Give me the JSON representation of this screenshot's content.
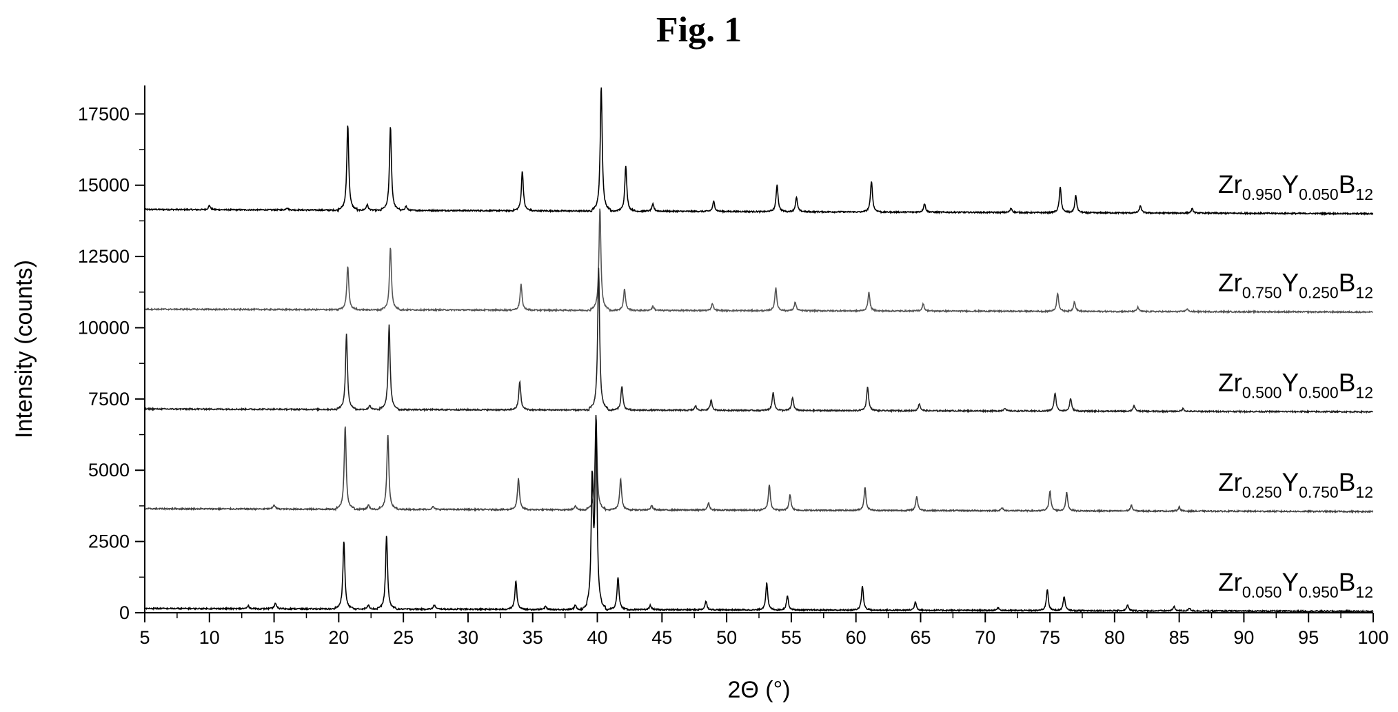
{
  "figure": {
    "title": "Fig. 1"
  },
  "chart_data": {
    "type": "line",
    "xlabel": "2Θ (°)",
    "ylabel": "Intensity (counts)",
    "xlim": [
      5,
      100
    ],
    "ylim": [
      0,
      18500
    ],
    "xticks": [
      5,
      10,
      15,
      20,
      25,
      30,
      35,
      40,
      45,
      50,
      55,
      60,
      65,
      70,
      75,
      80,
      85,
      90,
      95,
      100
    ],
    "yticks": [
      0,
      2500,
      5000,
      7500,
      10000,
      12500,
      15000,
      17500
    ],
    "grid": false,
    "legend": "inline labels at right of each trace",
    "series": [
      {
        "label_parts": [
          "Zr",
          "0.950",
          "Y",
          "0.050",
          "B",
          "12"
        ],
        "color": "#000000",
        "baseline": [
          [
            5,
            14150
          ],
          [
            100,
            14000
          ]
        ],
        "peaks": [
          [
            10.0,
            150
          ],
          [
            16.0,
            80
          ],
          [
            20.7,
            3000
          ],
          [
            22.2,
            200
          ],
          [
            24.0,
            2950
          ],
          [
            25.2,
            150
          ],
          [
            34.2,
            1400
          ],
          [
            40.3,
            4400
          ],
          [
            42.2,
            1600
          ],
          [
            44.3,
            250
          ],
          [
            49.0,
            350
          ],
          [
            53.9,
            950
          ],
          [
            55.4,
            500
          ],
          [
            61.2,
            1100
          ],
          [
            65.3,
            300
          ],
          [
            72.0,
            150
          ],
          [
            75.8,
            900
          ],
          [
            77.0,
            600
          ],
          [
            82.0,
            250
          ],
          [
            86.0,
            150
          ]
        ]
      },
      {
        "label_parts": [
          "Zr",
          "0.750",
          "Y",
          "0.250",
          "B",
          "12"
        ],
        "color": "#555555",
        "baseline": [
          [
            5,
            10650
          ],
          [
            100,
            10550
          ]
        ],
        "peaks": [
          [
            20.7,
            1550
          ],
          [
            24.0,
            2200
          ],
          [
            34.1,
            900
          ],
          [
            40.2,
            3600
          ],
          [
            42.1,
            750
          ],
          [
            44.3,
            150
          ],
          [
            48.9,
            250
          ],
          [
            53.8,
            800
          ],
          [
            55.3,
            300
          ],
          [
            61.0,
            650
          ],
          [
            65.2,
            250
          ],
          [
            75.6,
            650
          ],
          [
            76.9,
            350
          ],
          [
            81.8,
            150
          ],
          [
            85.6,
            100
          ]
        ]
      },
      {
        "label_parts": [
          "Zr",
          "0.500",
          "Y",
          "0.500",
          "B",
          "12"
        ],
        "color": "#222222",
        "baseline": [
          [
            5,
            7150
          ],
          [
            100,
            7050
          ]
        ],
        "peaks": [
          [
            20.6,
            2650
          ],
          [
            22.4,
            150
          ],
          [
            23.9,
            3000
          ],
          [
            34.0,
            1000
          ],
          [
            40.1,
            5000
          ],
          [
            41.9,
            850
          ],
          [
            47.6,
            150
          ],
          [
            48.8,
            350
          ],
          [
            53.6,
            650
          ],
          [
            55.1,
            450
          ],
          [
            60.9,
            850
          ],
          [
            64.9,
            250
          ],
          [
            71.5,
            100
          ],
          [
            75.4,
            650
          ],
          [
            76.6,
            450
          ],
          [
            81.5,
            200
          ],
          [
            85.3,
            100
          ]
        ]
      },
      {
        "label_parts": [
          "Zr",
          "0.250",
          "Y",
          "0.750",
          "B",
          "12"
        ],
        "color": "#444444",
        "baseline": [
          [
            5,
            3650
          ],
          [
            100,
            3550
          ]
        ],
        "peaks": [
          [
            15.0,
            150
          ],
          [
            20.5,
            2950
          ],
          [
            22.3,
            150
          ],
          [
            23.8,
            2650
          ],
          [
            27.3,
            100
          ],
          [
            33.9,
            1100
          ],
          [
            38.3,
            150
          ],
          [
            39.9,
            3300
          ],
          [
            41.8,
            1100
          ],
          [
            44.2,
            150
          ],
          [
            48.6,
            250
          ],
          [
            53.3,
            900
          ],
          [
            54.9,
            550
          ],
          [
            60.7,
            800
          ],
          [
            64.7,
            500
          ],
          [
            71.3,
            100
          ],
          [
            75.0,
            700
          ],
          [
            76.3,
            650
          ],
          [
            81.3,
            200
          ],
          [
            85.0,
            150
          ]
        ]
      },
      {
        "label_parts": [
          "Zr",
          "0.050",
          "Y",
          "0.950",
          "B",
          "12"
        ],
        "color": "#000000",
        "baseline": [
          [
            5,
            150
          ],
          [
            100,
            50
          ]
        ],
        "peaks": [
          [
            13.0,
            100
          ],
          [
            15.1,
            200
          ],
          [
            20.4,
            2400
          ],
          [
            22.3,
            150
          ],
          [
            23.7,
            2600
          ],
          [
            27.4,
            150
          ],
          [
            33.7,
            1000
          ],
          [
            36.0,
            100
          ],
          [
            38.3,
            150
          ],
          [
            39.6,
            4400
          ],
          [
            39.9,
            6500
          ],
          [
            41.6,
            1150
          ],
          [
            44.1,
            150
          ],
          [
            48.4,
            300
          ],
          [
            53.1,
            950
          ],
          [
            54.7,
            500
          ],
          [
            60.5,
            850
          ],
          [
            64.6,
            300
          ],
          [
            71.0,
            100
          ],
          [
            74.8,
            750
          ],
          [
            76.1,
            500
          ],
          [
            81.0,
            200
          ],
          [
            84.6,
            150
          ],
          [
            85.8,
            100
          ]
        ]
      }
    ]
  }
}
